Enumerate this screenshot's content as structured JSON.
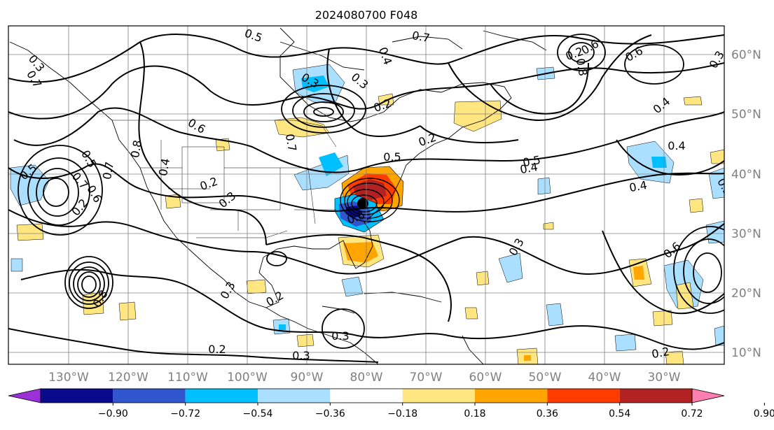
{
  "title": "2024080700 F048",
  "colors": {
    "frame": "#000000",
    "grid": "#808080",
    "contour": "#000000",
    "coast": "#000000"
  },
  "longitude_labels": [
    "130°W",
    "120°W",
    "110°W",
    "100°W",
    "90°W",
    "80°W",
    "70°W",
    "60°W",
    "50°W",
    "40°W",
    "30°W"
  ],
  "latitude_labels": [
    "60°N",
    "50°N",
    "40°N",
    "30°N",
    "20°N",
    "10°N"
  ],
  "colorbar": {
    "ticks": [
      "−0.90",
      "−0.72",
      "−0.54",
      "−0.36",
      "−0.18",
      "0.18",
      "0.36",
      "0.54",
      "0.72",
      "0.90"
    ],
    "colors": [
      "#9b30d8",
      "#0a0a8c",
      "#3055cc",
      "#00bfff",
      "#aadfff",
      "#ffffff",
      "#ffe680",
      "#ffa500",
      "#ff3c00",
      "#b22222",
      "#ff80b0"
    ]
  },
  "contour_labels": [
    "0.5",
    "0.3",
    "0.7",
    "0.5",
    "0.7",
    "0.5",
    "0.6",
    "0.2",
    "0.7",
    "0.8",
    "0.6",
    "0.8",
    "0.4",
    "0.7",
    "0.2",
    "0.3",
    "0.3",
    "0.3",
    "0.4",
    "0.2",
    "0.5",
    "0.7",
    "0.8",
    "0.6",
    "0.4",
    "0.6",
    "0.3",
    "0.4",
    "0.5",
    "0.4",
    "0.4",
    "0.5",
    "0.6",
    "0.2",
    "0.2",
    "0.3",
    "0.3",
    "0.3",
    "0.2",
    "0.2",
    "0.6",
    "0.3",
    "0.2"
  ],
  "chart_data": {
    "type": "heatmap",
    "title": "2024080700 F048",
    "lon_range": [
      -140,
      -20
    ],
    "lat_range": [
      7,
      65
    ],
    "xticks": [
      -130,
      -120,
      -110,
      -100,
      -90,
      -80,
      -70,
      -60,
      -50,
      -40,
      -30
    ],
    "yticks": [
      60,
      50,
      40,
      30,
      20,
      10
    ],
    "colorbar_levels": [
      -0.9,
      -0.72,
      -0.54,
      -0.36,
      -0.18,
      0.18,
      0.36,
      0.54,
      0.72,
      0.9
    ],
    "contour_levels": [
      0.2,
      0.3,
      0.4,
      0.5,
      0.6,
      0.7,
      0.8
    ],
    "features": [
      {
        "name": "strong dipole near US southeast coast",
        "lon": -80,
        "lat": 35,
        "pos": 0.8,
        "neg": -0.8
      },
      {
        "name": "positive anomaly over Florida",
        "lon": -80,
        "lat": 27,
        "value": 0.5
      },
      {
        "name": "negative anomaly Great Lakes",
        "lon": -88,
        "lat": 40,
        "value": -0.3
      },
      {
        "name": "closed contour low east Pacific",
        "lon": -127,
        "lat": 21
      }
    ]
  }
}
